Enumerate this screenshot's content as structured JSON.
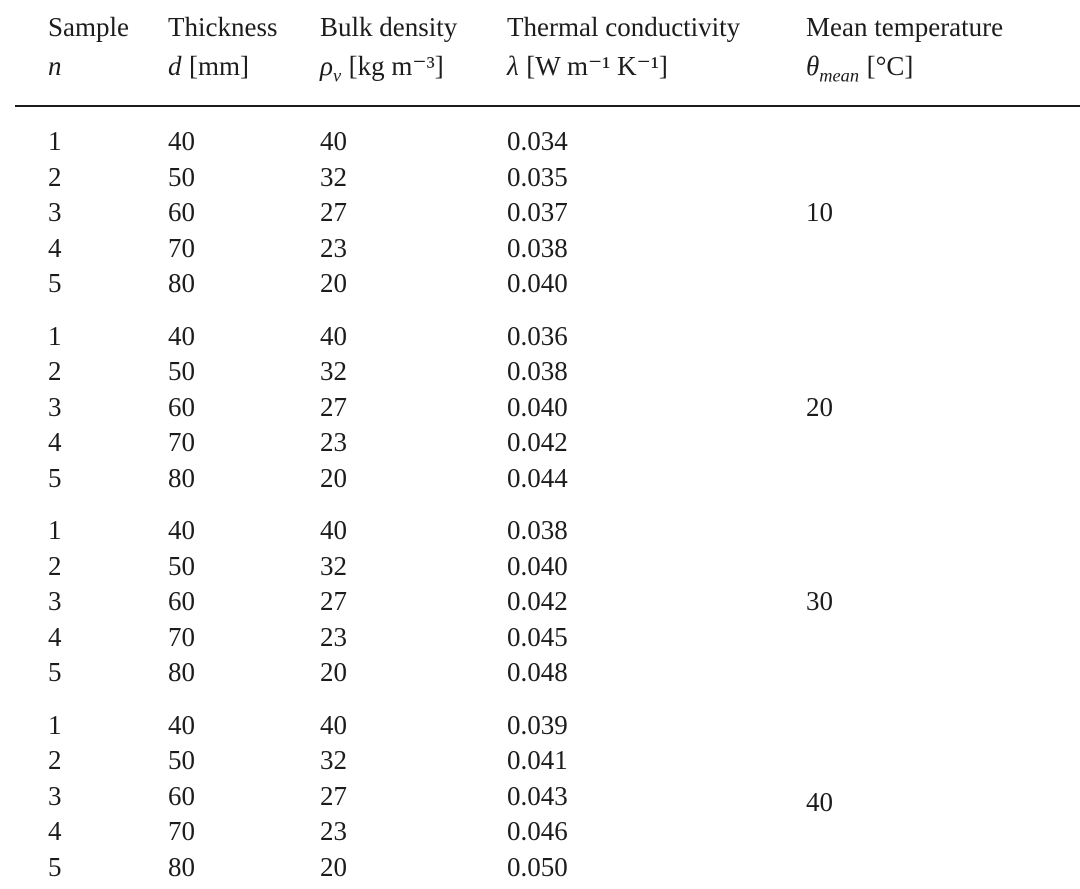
{
  "colors": {
    "background": "#ffffff",
    "text": "#1c1c1c",
    "rule": "#1c1c1c"
  },
  "table": {
    "columns": [
      {
        "title": "Sample",
        "symbol": "n",
        "sub": "",
        "unit": ""
      },
      {
        "title": "Thickness",
        "symbol": "d",
        "sub": "",
        "unit": "[mm]"
      },
      {
        "title": "Bulk density",
        "symbol": "ρ",
        "sub": "v",
        "unit": "[kg m⁻³]"
      },
      {
        "title": "Thermal conductivity",
        "symbol": "λ",
        "sub": "",
        "unit": "[W m⁻¹ K⁻¹]"
      },
      {
        "title": "Mean temperature",
        "symbol": "θ",
        "sub": "mean",
        "unit": "[°C]"
      }
    ],
    "groups": [
      {
        "mean_temperature": "10",
        "rows": [
          [
            "1",
            "40",
            "40",
            "0.034"
          ],
          [
            "2",
            "50",
            "32",
            "0.035"
          ],
          [
            "3",
            "60",
            "27",
            "0.037"
          ],
          [
            "4",
            "70",
            "23",
            "0.038"
          ],
          [
            "5",
            "80",
            "20",
            "0.040"
          ]
        ]
      },
      {
        "mean_temperature": "20",
        "rows": [
          [
            "1",
            "40",
            "40",
            "0.036"
          ],
          [
            "2",
            "50",
            "32",
            "0.038"
          ],
          [
            "3",
            "60",
            "27",
            "0.040"
          ],
          [
            "4",
            "70",
            "23",
            "0.042"
          ],
          [
            "5",
            "80",
            "20",
            "0.044"
          ]
        ]
      },
      {
        "mean_temperature": "30",
        "rows": [
          [
            "1",
            "40",
            "40",
            "0.038"
          ],
          [
            "2",
            "50",
            "32",
            "0.040"
          ],
          [
            "3",
            "60",
            "27",
            "0.042"
          ],
          [
            "4",
            "70",
            "23",
            "0.045"
          ],
          [
            "5",
            "80",
            "20",
            "0.048"
          ]
        ]
      },
      {
        "mean_temperature": "40",
        "rows": [
          [
            "1",
            "40",
            "40",
            "0.039"
          ],
          [
            "2",
            "50",
            "32",
            "0.041"
          ],
          [
            "3",
            "60",
            "27",
            "0.043"
          ],
          [
            "4",
            "70",
            "23",
            "0.046"
          ],
          [
            "5",
            "80",
            "20",
            "0.050"
          ]
        ]
      }
    ]
  }
}
